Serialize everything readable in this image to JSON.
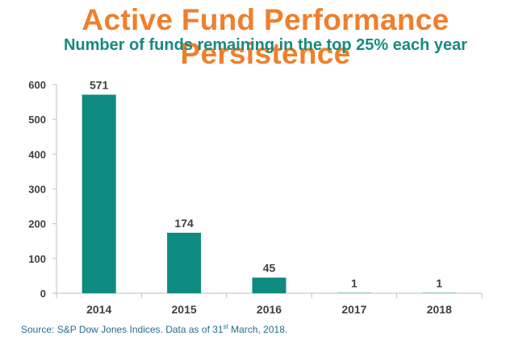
{
  "title": "Active Fund Performance Persistence",
  "subtitle": "Number of funds remaining in the top 25% each year",
  "source": {
    "prefix": "Source: S&P Dow Jones Indices. Data as of 31",
    "sup": "st",
    "suffix": " March, 2018."
  },
  "colors": {
    "title": "#ef7f2c",
    "subtitle": "#168a82",
    "bar": "#0e8a80",
    "axis": "#bfbfbf",
    "text": "#404040"
  },
  "chart_data": {
    "type": "bar",
    "categories": [
      "2014",
      "2015",
      "2016",
      "2017",
      "2018"
    ],
    "values": [
      571,
      174,
      45,
      1,
      1
    ],
    "data_labels": [
      "571",
      "174",
      "45",
      "1",
      "1"
    ],
    "yticks": [
      0,
      100,
      200,
      300,
      400,
      500,
      600
    ],
    "ylim": [
      0,
      600
    ],
    "grid": false,
    "legend": "none"
  }
}
